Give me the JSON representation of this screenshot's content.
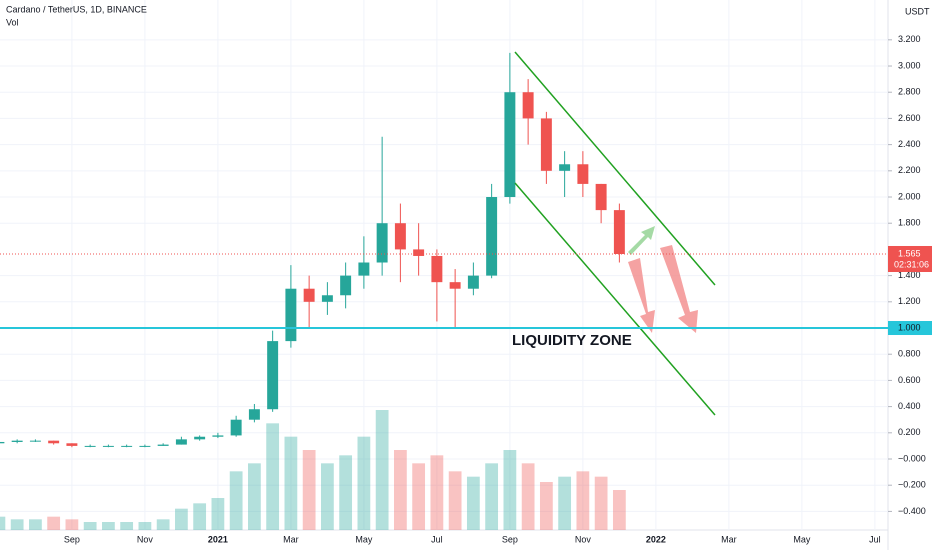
{
  "chart_data": {
    "type": "candlestick",
    "title": "Cardano / TetherUS, 1D, BINANCE",
    "volume_label": "Vol",
    "currency": "USDT",
    "annotation": "LIQUIDITY ZONE",
    "liquidity_level": {
      "value": 1,
      "label": "1.000"
    },
    "last_price": {
      "value": 1.565,
      "label": "1.565"
    },
    "countdown": "02:31:06",
    "up_color": "#26a69a",
    "down_color": "#ef5350",
    "x": [
      0,
      0.5,
      1,
      1.5,
      2,
      2.5,
      3,
      3.5,
      4,
      4.5,
      5,
      5.5,
      6,
      6.5,
      7,
      7.5,
      8,
      8.5,
      9,
      9.5,
      10,
      10.5,
      11,
      11.5,
      12,
      12.5,
      13,
      13.5,
      14,
      14.5,
      15,
      15.5,
      16,
      16.5,
      17
    ],
    "open": [
      0.12,
      0.13,
      0.14,
      0.14,
      0.12,
      0.1,
      0.1,
      0.1,
      0.1,
      0.1,
      0.11,
      0.15,
      0.17,
      0.18,
      0.3,
      0.38,
      0.9,
      1.3,
      1.2,
      1.25,
      1.4,
      1.5,
      1.8,
      1.6,
      1.55,
      1.35,
      1.3,
      1.4,
      2.0,
      2.8,
      2.6,
      2.2,
      2.25,
      2.1,
      1.9
    ],
    "high": [
      0.14,
      0.15,
      0.15,
      0.14,
      0.12,
      0.11,
      0.11,
      0.11,
      0.11,
      0.12,
      0.17,
      0.18,
      0.2,
      0.33,
      0.42,
      0.98,
      1.48,
      1.4,
      1.35,
      1.5,
      1.7,
      2.46,
      1.95,
      1.8,
      1.6,
      1.45,
      1.5,
      2.1,
      3.1,
      2.9,
      2.65,
      2.35,
      2.35,
      2.1,
      1.95
    ],
    "low": [
      0.11,
      0.12,
      0.13,
      0.11,
      0.09,
      0.09,
      0.09,
      0.09,
      0.09,
      0.1,
      0.11,
      0.14,
      0.16,
      0.17,
      0.28,
      0.36,
      0.85,
      1.0,
      1.1,
      1.15,
      1.3,
      1.4,
      1.35,
      1.4,
      1.05,
      1.0,
      1.25,
      1.38,
      1.95,
      2.4,
      2.1,
      2.0,
      2.0,
      1.8,
      1.5
    ],
    "close": [
      0.13,
      0.14,
      0.14,
      0.12,
      0.1,
      0.1,
      0.1,
      0.1,
      0.1,
      0.11,
      0.15,
      0.17,
      0.18,
      0.3,
      0.38,
      0.9,
      1.3,
      1.2,
      1.25,
      1.4,
      1.5,
      1.8,
      1.6,
      1.55,
      1.35,
      1.3,
      1.4,
      2.0,
      2.8,
      2.6,
      2.2,
      2.25,
      2.1,
      1.9,
      1.565
    ],
    "volume": [
      5,
      4,
      4,
      5,
      4,
      3,
      3,
      3,
      3,
      4,
      8,
      10,
      12,
      22,
      25,
      40,
      35,
      30,
      25,
      28,
      35,
      45,
      30,
      25,
      28,
      22,
      20,
      25,
      30,
      25,
      18,
      20,
      22,
      20,
      15
    ],
    "xlim": [
      0.03,
      24.36
    ],
    "xticks": [
      {
        "value": 2,
        "label": "Sep"
      },
      {
        "value": 4,
        "label": "Nov"
      },
      {
        "value": 6,
        "label": "2021"
      },
      {
        "value": 8,
        "label": "Mar"
      },
      {
        "value": 10,
        "label": "May"
      },
      {
        "value": 12,
        "label": "Jul"
      },
      {
        "value": 14,
        "label": "Sep"
      },
      {
        "value": 16,
        "label": "Nov"
      },
      {
        "value": 18,
        "label": "2022"
      },
      {
        "value": 20,
        "label": "Mar"
      },
      {
        "value": 22,
        "label": "May"
      },
      {
        "value": 24,
        "label": "Jul"
      }
    ],
    "ylim": [
      -0.542,
      3.504
    ],
    "yticks": [
      {
        "value": -0.4,
        "label": "−0.400"
      },
      {
        "value": -0.2,
        "label": "−0.200"
      },
      {
        "value": 0,
        "label": "−0.000"
      },
      {
        "value": 0.2,
        "label": "0.200"
      },
      {
        "value": 0.4,
        "label": "0.400"
      },
      {
        "value": 0.6,
        "label": "0.600"
      },
      {
        "value": 0.8,
        "label": "0.800"
      },
      {
        "value": 1.2,
        "label": "1.200"
      },
      {
        "value": 1.4,
        "label": "1.400"
      },
      {
        "value": 1.8,
        "label": "1.800"
      },
      {
        "value": 2,
        "label": "2.000"
      },
      {
        "value": 2.2,
        "label": "2.200"
      },
      {
        "value": 2.4,
        "label": "2.400"
      },
      {
        "value": 2.6,
        "label": "2.600"
      },
      {
        "value": 2.8,
        "label": "2.800"
      },
      {
        "value": 3,
        "label": "3.000"
      },
      {
        "value": 3.2,
        "label": "3.200"
      }
    ],
    "grid": true
  }
}
